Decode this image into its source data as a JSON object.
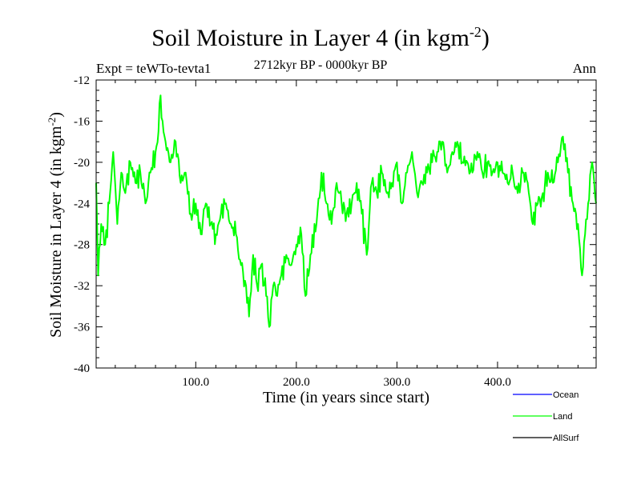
{
  "chart_data": {
    "type": "line",
    "title": "Soil Moisture in Layer 4 (in kgm",
    "title_exponent": "-2",
    "title_close": ")",
    "expt_label": "Expt = teWTo-tevta1",
    "period_label": "2712kyr BP - 0000kyr BP",
    "season_label": "Ann",
    "xlabel": "Time (in years since start)",
    "ylabel": "Soil Moisture in Layer 4 (in kgm",
    "ylabel_exponent": "-2",
    "ylabel_close": ")",
    "xlim": [
      1,
      498
    ],
    "ylim": [
      -40,
      -12
    ],
    "xticks": [
      100,
      200,
      300,
      400
    ],
    "xtick_labels": [
      "100.0",
      "200.0",
      "300.0",
      "400.0"
    ],
    "yticks": [
      -40,
      -36,
      -32,
      -28,
      -24,
      -20,
      -16,
      -12
    ],
    "ytick_labels": [
      "-40",
      "-36",
      "-32",
      "-28",
      "-24",
      "-20",
      "-16",
      "-12"
    ],
    "legend": [
      {
        "name": "Ocean",
        "color": "#0000ff"
      },
      {
        "name": "Land",
        "color": "#00ff00"
      },
      {
        "name": "AllSurf",
        "color": "#000000"
      }
    ],
    "series": [
      {
        "name": "Land",
        "color": "#00ff00",
        "anchors": [
          [
            1,
            -22
          ],
          [
            3,
            -31
          ],
          [
            6,
            -26
          ],
          [
            10,
            -28
          ],
          [
            14,
            -24
          ],
          [
            18,
            -19
          ],
          [
            22,
            -26
          ],
          [
            26,
            -21
          ],
          [
            30,
            -23
          ],
          [
            35,
            -20
          ],
          [
            40,
            -22
          ],
          [
            45,
            -21
          ],
          [
            50,
            -24
          ],
          [
            55,
            -21
          ],
          [
            60,
            -19
          ],
          [
            63,
            -17
          ],
          [
            65,
            -13.5
          ],
          [
            67,
            -16
          ],
          [
            70,
            -18
          ],
          [
            75,
            -20
          ],
          [
            80,
            -18
          ],
          [
            85,
            -22
          ],
          [
            90,
            -21
          ],
          [
            95,
            -25
          ],
          [
            100,
            -24
          ],
          [
            105,
            -27
          ],
          [
            110,
            -24
          ],
          [
            115,
            -26
          ],
          [
            120,
            -27
          ],
          [
            125,
            -25
          ],
          [
            130,
            -24
          ],
          [
            135,
            -26
          ],
          [
            140,
            -27
          ],
          [
            145,
            -30
          ],
          [
            150,
            -32
          ],
          [
            153,
            -35
          ],
          [
            157,
            -29
          ],
          [
            161,
            -32
          ],
          [
            165,
            -30
          ],
          [
            170,
            -33
          ],
          [
            173,
            -36
          ],
          [
            177,
            -32
          ],
          [
            181,
            -33
          ],
          [
            185,
            -31
          ],
          [
            190,
            -29
          ],
          [
            195,
            -30
          ],
          [
            200,
            -28
          ],
          [
            205,
            -27
          ],
          [
            209,
            -33
          ],
          [
            214,
            -29
          ],
          [
            220,
            -26
          ],
          [
            225,
            -21
          ],
          [
            230,
            -24
          ],
          [
            235,
            -26
          ],
          [
            240,
            -22
          ],
          [
            245,
            -24
          ],
          [
            250,
            -25
          ],
          [
            255,
            -24
          ],
          [
            260,
            -22
          ],
          [
            265,
            -25
          ],
          [
            270,
            -29
          ],
          [
            275,
            -22
          ],
          [
            280,
            -23
          ],
          [
            285,
            -21
          ],
          [
            290,
            -23
          ],
          [
            295,
            -22
          ],
          [
            300,
            -20
          ],
          [
            305,
            -24
          ],
          [
            310,
            -21
          ],
          [
            315,
            -19
          ],
          [
            320,
            -23
          ],
          [
            325,
            -22
          ],
          [
            330,
            -21
          ],
          [
            335,
            -20
          ],
          [
            340,
            -19
          ],
          [
            345,
            -18
          ],
          [
            350,
            -21
          ],
          [
            355,
            -19
          ],
          [
            360,
            -18
          ],
          [
            365,
            -20
          ],
          [
            370,
            -20
          ],
          [
            375,
            -21
          ],
          [
            380,
            -19
          ],
          [
            385,
            -21
          ],
          [
            390,
            -20
          ],
          [
            395,
            -21
          ],
          [
            400,
            -20
          ],
          [
            405,
            -21
          ],
          [
            410,
            -22
          ],
          [
            415,
            -21
          ],
          [
            420,
            -23
          ],
          [
            425,
            -21
          ],
          [
            430,
            -22
          ],
          [
            435,
            -26
          ],
          [
            440,
            -24
          ],
          [
            445,
            -23
          ],
          [
            450,
            -21
          ],
          [
            455,
            -22
          ],
          [
            460,
            -20
          ],
          [
            465,
            -17.5
          ],
          [
            470,
            -21
          ],
          [
            475,
            -24
          ],
          [
            480,
            -26
          ],
          [
            484,
            -31
          ],
          [
            487,
            -27
          ],
          [
            490,
            -24
          ],
          [
            494,
            -20
          ],
          [
            498,
            -24
          ]
        ]
      }
    ]
  }
}
